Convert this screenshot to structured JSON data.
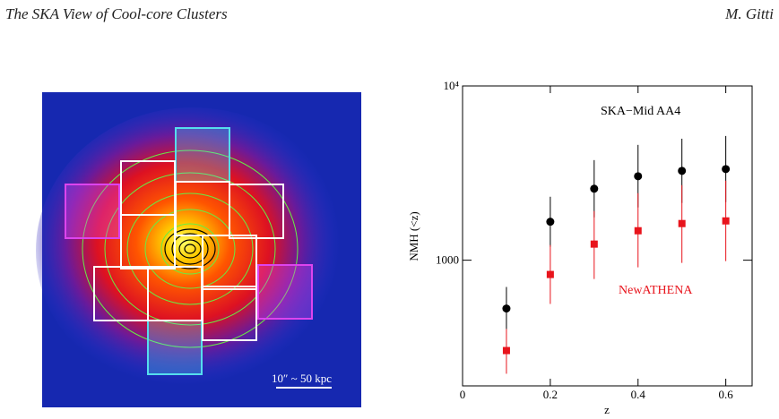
{
  "header": {
    "title": "The SKA View of Cool-core Clusters",
    "author": "M. Gitti"
  },
  "figure": {
    "scale_label": "10″ ~ 50 kpc"
  },
  "chart_data": {
    "type": "scatter",
    "xlabel": "z",
    "ylabel": "NMH (<z)",
    "log_y": true,
    "xlim": [
      0,
      0.66
    ],
    "ylim": [
      190,
      10000
    ],
    "xticks": [
      0,
      0.2,
      0.4,
      0.6
    ],
    "yticks": [
      1000,
      {
        "value": 10000,
        "label": "10⁴"
      }
    ],
    "x": [
      0.1,
      0.2,
      0.3,
      0.4,
      0.5,
      0.6
    ],
    "series": [
      {
        "name": "SKA−Mid AA4",
        "color": "#000000",
        "marker": "circle",
        "values": [
          528,
          1662,
          2572,
          3034,
          3257,
          3334
        ],
        "lower": [
          403,
          1194,
          1763,
          2008,
          2130,
          2155
        ],
        "upper": [
          702,
          2313,
          3753,
          4590,
          4980,
          5163
        ]
      },
      {
        "name": "NewATHENA",
        "color": "#e8141c",
        "marker": "square",
        "values": [
          303,
          828,
          1237,
          1476,
          1623,
          1681
        ],
        "lower": [
          223,
          561,
          780,
          910,
          965,
          988
        ],
        "upper": [
          403,
          1222,
          1914,
          2425,
          2697,
          2860
        ]
      }
    ]
  }
}
